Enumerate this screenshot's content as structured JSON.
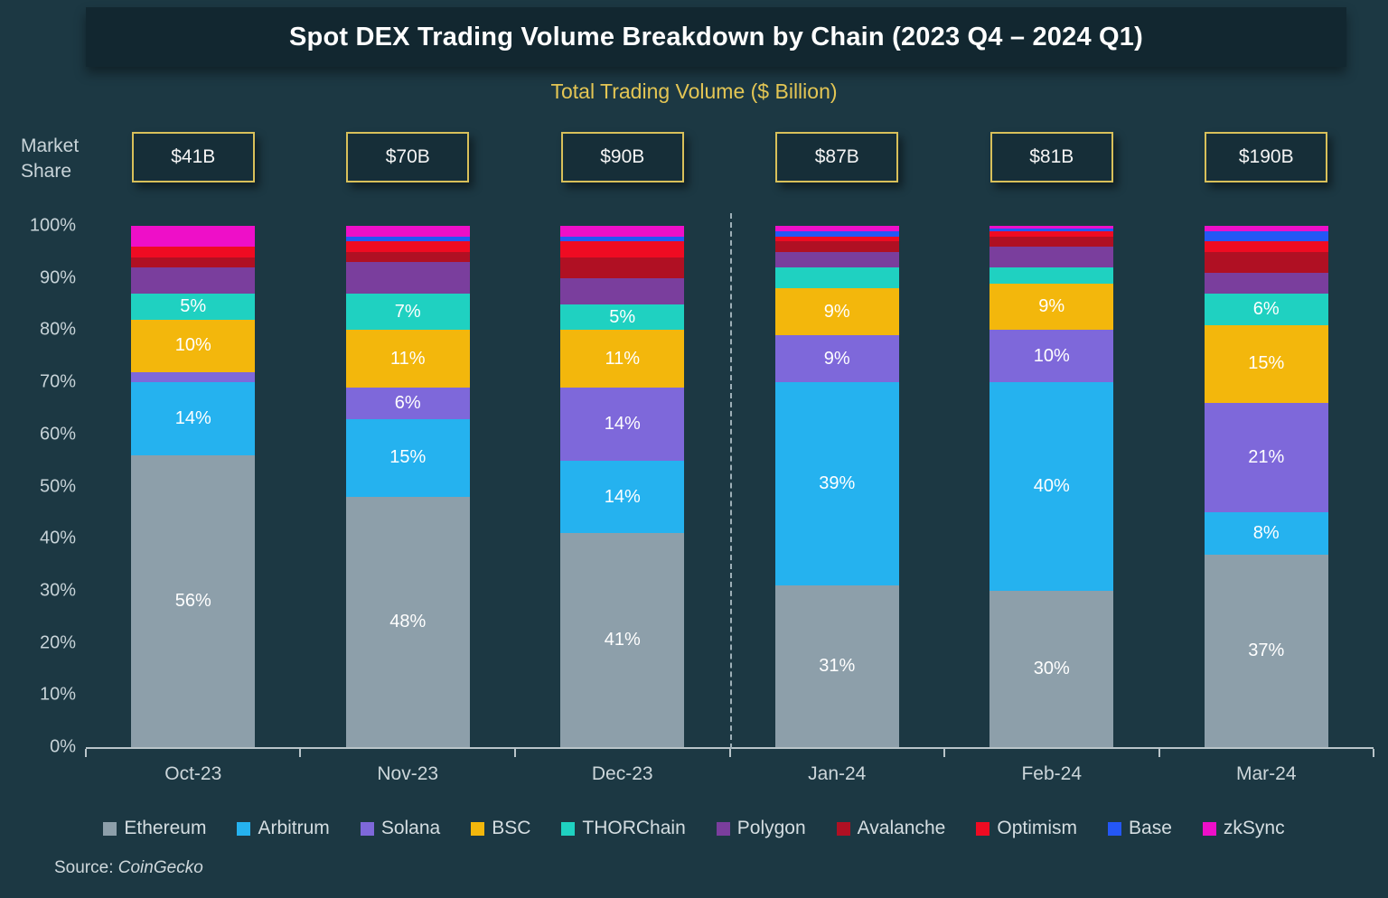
{
  "header": {
    "title": "Spot DEX Trading Volume Breakdown by Chain (2023 Q4 – 2024 Q1)"
  },
  "subtitle": "Total Trading Volume ($ Billion)",
  "market_share_label": "Market Share",
  "source": {
    "prefix": "Source: ",
    "name": "CoinGecko"
  },
  "chart_data": {
    "type": "bar",
    "stacked": true,
    "unit": "%",
    "title": "Spot DEX Trading Volume Breakdown by Chain (2023 Q4 – 2024 Q1)",
    "subtitle": "Total Trading Volume ($ Billion)",
    "ylabel": "Market Share",
    "ylim": [
      0,
      100
    ],
    "yticks": [
      0,
      10,
      20,
      30,
      40,
      50,
      60,
      70,
      80,
      90,
      100
    ],
    "categories": [
      "Oct-23",
      "Nov-23",
      "Dec-23",
      "Jan-24",
      "Feb-24",
      "Mar-24"
    ],
    "totals": [
      "$41B",
      "$70B",
      "$90B",
      "$87B",
      "$81B",
      "$190B"
    ],
    "separator_after_index": 2,
    "grid": false,
    "legend_position": "bottom",
    "label_rule": "percentage label shown for the first five series when value >= 5",
    "series": [
      {
        "name": "Ethereum",
        "color": "#8d9faa",
        "values": [
          56,
          48,
          41,
          31,
          30,
          37
        ]
      },
      {
        "name": "Arbitrum",
        "color": "#25b2ef",
        "values": [
          14,
          15,
          14,
          39,
          40,
          8
        ]
      },
      {
        "name": "Solana",
        "color": "#7e68da",
        "values": [
          2,
          6,
          14,
          9,
          10,
          21
        ]
      },
      {
        "name": "BSC",
        "color": "#f3b70c",
        "values": [
          10,
          11,
          11,
          9,
          9,
          15
        ]
      },
      {
        "name": "THORChain",
        "color": "#1fd1c1",
        "values": [
          5,
          7,
          5,
          4,
          3,
          6
        ]
      },
      {
        "name": "Polygon",
        "color": "#7a3e9d",
        "values": [
          5,
          6,
          5,
          3,
          4,
          4
        ]
      },
      {
        "name": "Avalanche",
        "color": "#b01023",
        "values": [
          2,
          2,
          4,
          2,
          2,
          4
        ]
      },
      {
        "name": "Optimism",
        "color": "#ef0b22",
        "values": [
          2,
          2,
          3,
          1,
          1,
          2
        ]
      },
      {
        "name": "Base",
        "color": "#2457f5",
        "values": [
          0,
          1,
          1,
          1,
          0.5,
          2
        ]
      },
      {
        "name": "zkSync",
        "color": "#ee0fc8",
        "values": [
          4,
          2,
          2,
          1,
          0.5,
          1
        ]
      }
    ]
  }
}
